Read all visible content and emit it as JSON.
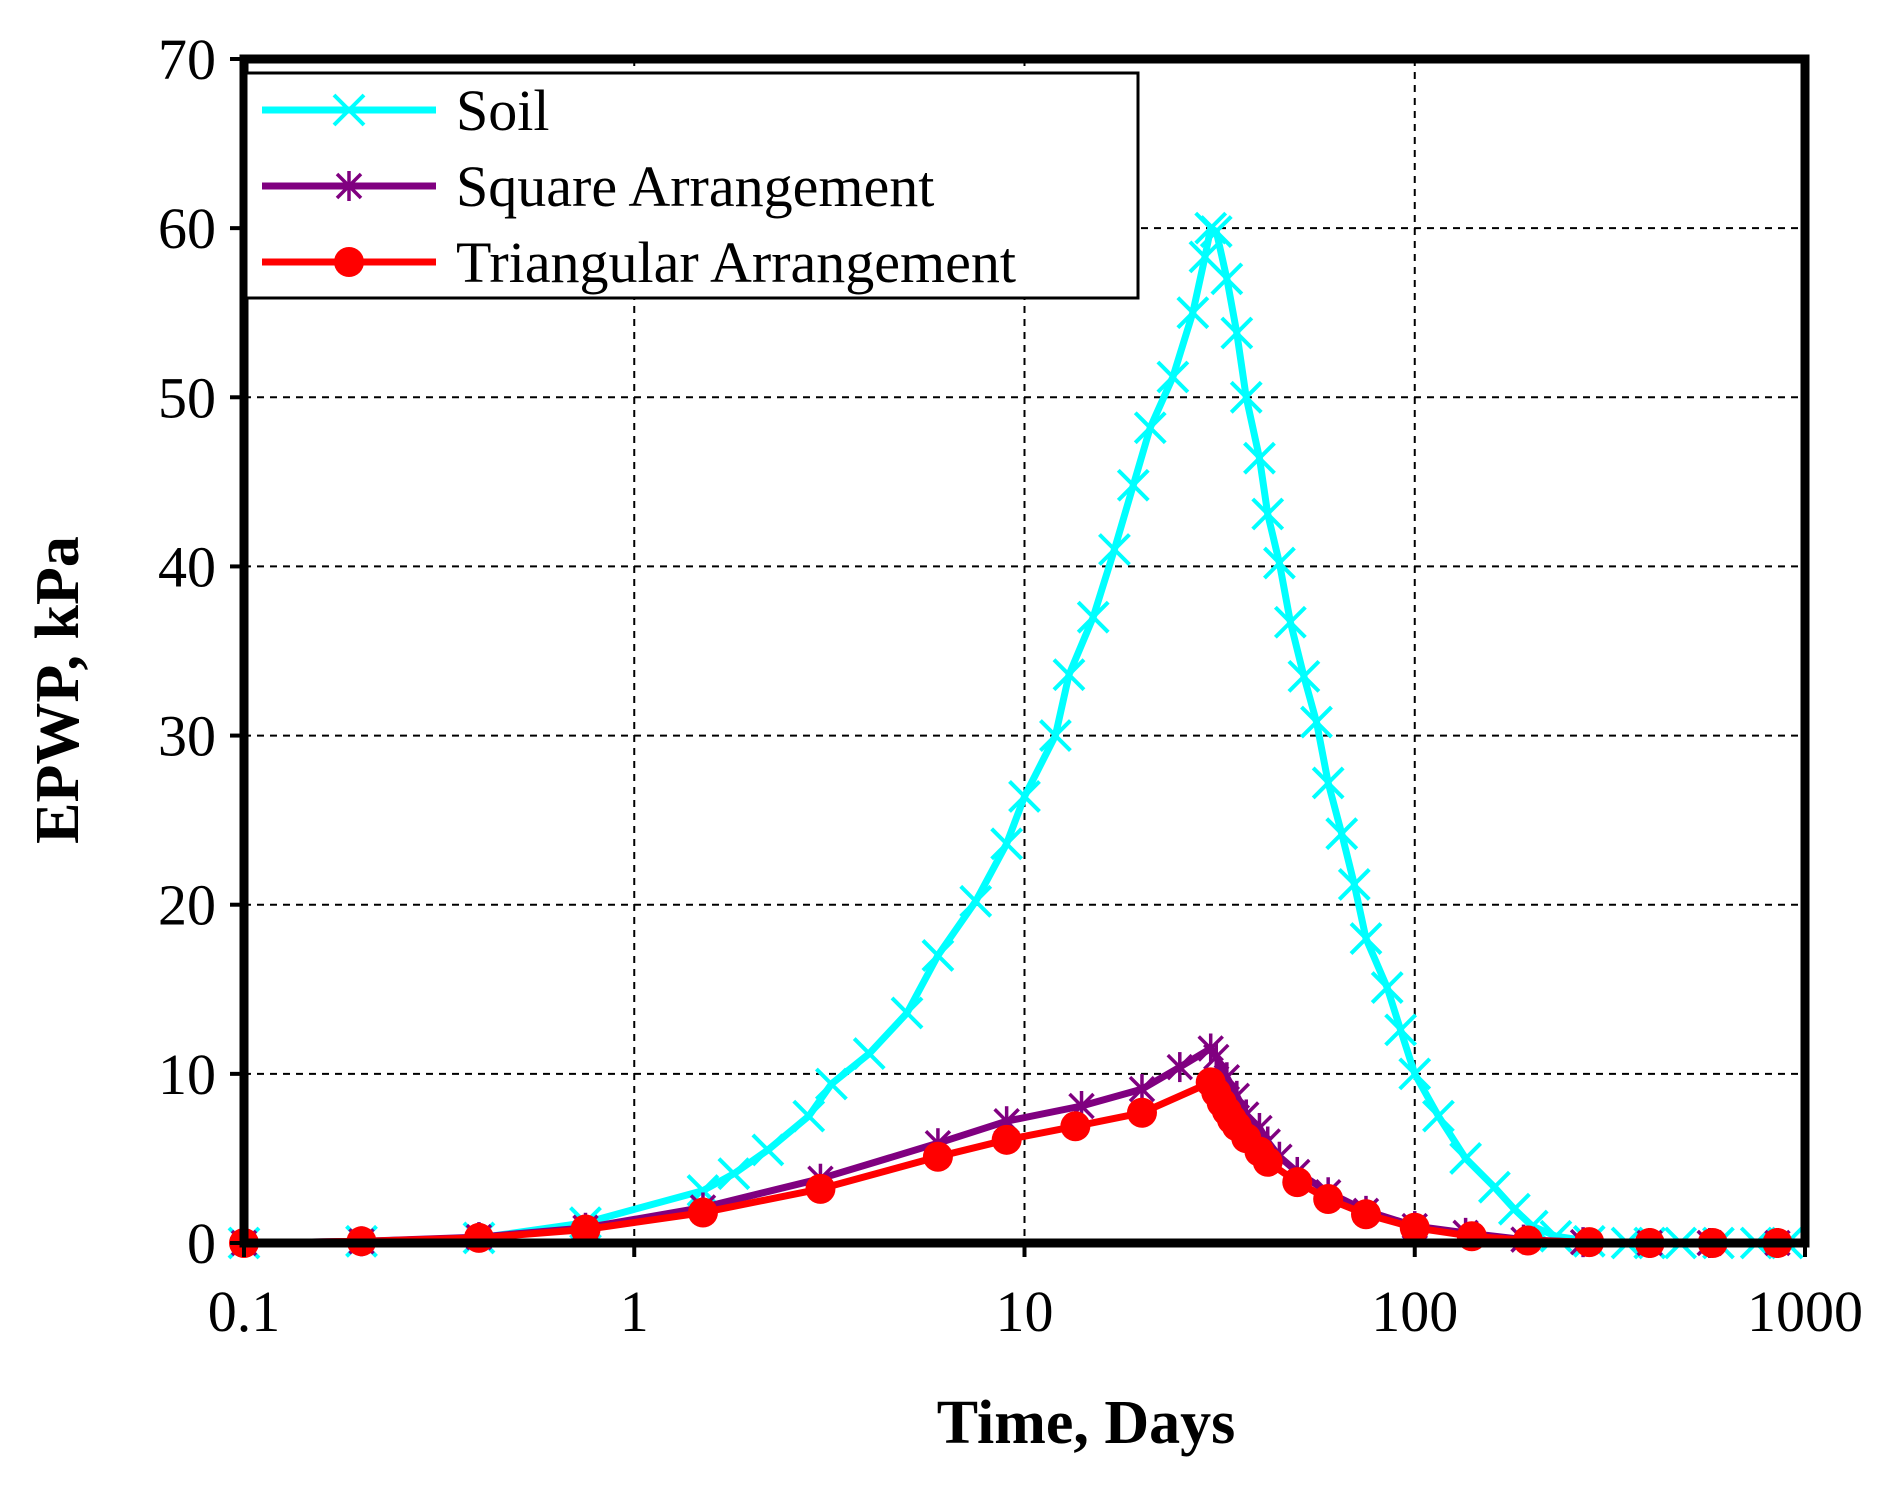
{
  "chart_data": {
    "type": "line",
    "xscale": "log",
    "xlabel": "Time, Days",
    "ylabel": "EPWP, kPa",
    "xlim": [
      0.1,
      1000
    ],
    "ylim": [
      0,
      70
    ],
    "grid": true,
    "legend_position": "top-left",
    "x_ticks": [
      0.1,
      1,
      10,
      100,
      1000
    ],
    "x_tick_labels": [
      "0.1",
      "1",
      "10",
      "100",
      "1000"
    ],
    "y_ticks": [
      0,
      10,
      20,
      30,
      40,
      50,
      60,
      70
    ],
    "y_tick_labels": [
      "0",
      "10",
      "20",
      "30",
      "40",
      "50",
      "60",
      "70"
    ],
    "series": [
      {
        "name": "Soil",
        "color": "#00ffff",
        "marker": "x",
        "points": [
          [
            0.1,
            0
          ],
          [
            0.2,
            0.1
          ],
          [
            0.4,
            0.3
          ],
          [
            0.75,
            1.2
          ],
          [
            1.5,
            3.1
          ],
          [
            1.8,
            4.1
          ],
          [
            2.2,
            5.5
          ],
          [
            2.8,
            7.5
          ],
          [
            3.2,
            9.4
          ],
          [
            4.0,
            11.2
          ],
          [
            5.0,
            13.6
          ],
          [
            6.0,
            17.0
          ],
          [
            7.5,
            20.2
          ],
          [
            9.0,
            23.6
          ],
          [
            10.0,
            26.4
          ],
          [
            12.0,
            30.0
          ],
          [
            13.0,
            33.6
          ],
          [
            15.0,
            37.0
          ],
          [
            17.0,
            41.0
          ],
          [
            19.0,
            44.8
          ],
          [
            21.0,
            48.2
          ],
          [
            24.0,
            51.2
          ],
          [
            27.0,
            55.0
          ],
          [
            29.0,
            58.3
          ],
          [
            30.0,
            60.0
          ],
          [
            31.0,
            59.8
          ],
          [
            33.0,
            57.0
          ],
          [
            35.0,
            53.8
          ],
          [
            37.0,
            50.0
          ],
          [
            40.0,
            46.4
          ],
          [
            42.0,
            43.1
          ],
          [
            45.0,
            40.2
          ],
          [
            48.0,
            36.7
          ],
          [
            52.0,
            33.5
          ],
          [
            56.0,
            30.8
          ],
          [
            60.0,
            27.2
          ],
          [
            65.0,
            24.2
          ],
          [
            70.0,
            21.2
          ],
          [
            75.0,
            18.0
          ],
          [
            85.0,
            15.1
          ],
          [
            92.0,
            12.6
          ],
          [
            100.0,
            10.0
          ],
          [
            115.0,
            7.5
          ],
          [
            135.0,
            5.0
          ],
          [
            160.0,
            3.3
          ],
          [
            180.0,
            2.0
          ],
          [
            200.0,
            1.0
          ],
          [
            230.0,
            0.4
          ],
          [
            280.0,
            0.1
          ],
          [
            350.0,
            0
          ],
          [
            400.0,
            0
          ],
          [
            480.0,
            0
          ],
          [
            600.0,
            0
          ],
          [
            750.0,
            0
          ],
          [
            900.0,
            0
          ]
        ]
      },
      {
        "name": "Square Arrangement",
        "color": "#800080",
        "marker": "asterisk",
        "points": [
          [
            0.1,
            0
          ],
          [
            0.2,
            0.1
          ],
          [
            0.4,
            0.35
          ],
          [
            0.75,
            0.9
          ],
          [
            1.5,
            2.1
          ],
          [
            3.0,
            3.8
          ],
          [
            6.0,
            5.9
          ],
          [
            9.0,
            7.2
          ],
          [
            14.0,
            8.1
          ],
          [
            20.0,
            9.1
          ],
          [
            25.0,
            10.4
          ],
          [
            30.0,
            11.5
          ],
          [
            31.0,
            11.0
          ],
          [
            33.0,
            9.8
          ],
          [
            35.0,
            8.7
          ],
          [
            37.0,
            7.6
          ],
          [
            40.0,
            6.8
          ],
          [
            42.0,
            6.0
          ],
          [
            45.0,
            5.1
          ],
          [
            50.0,
            4.2
          ],
          [
            60.0,
            3.0
          ],
          [
            75.0,
            1.9
          ],
          [
            100.0,
            1.0
          ],
          [
            135.0,
            0.6
          ],
          [
            190.0,
            0.2
          ],
          [
            270.0,
            0.05
          ],
          [
            400.0,
            0
          ],
          [
            570.0,
            0
          ],
          [
            850.0,
            0
          ]
        ]
      },
      {
        "name": "Triangular Arrangement",
        "color": "#ff0000",
        "marker": "circle",
        "points": [
          [
            0.1,
            0
          ],
          [
            0.2,
            0.1
          ],
          [
            0.4,
            0.3
          ],
          [
            0.75,
            0.8
          ],
          [
            1.5,
            1.8
          ],
          [
            3.0,
            3.2
          ],
          [
            6.0,
            5.1
          ],
          [
            9.0,
            6.1
          ],
          [
            13.5,
            6.9
          ],
          [
            20.0,
            7.7
          ],
          [
            30.0,
            9.5
          ],
          [
            31.0,
            8.9
          ],
          [
            32.0,
            8.3
          ],
          [
            33.0,
            7.8
          ],
          [
            34.0,
            7.3
          ],
          [
            35.0,
            6.9
          ],
          [
            37.0,
            6.2
          ],
          [
            40.0,
            5.4
          ],
          [
            42.0,
            4.8
          ],
          [
            50.0,
            3.6
          ],
          [
            60.0,
            2.6
          ],
          [
            75.0,
            1.7
          ],
          [
            100.0,
            0.9
          ],
          [
            140.0,
            0.4
          ],
          [
            195.0,
            0.15
          ],
          [
            280.0,
            0.05
          ],
          [
            400.0,
            0
          ],
          [
            580.0,
            0
          ],
          [
            850.0,
            0
          ]
        ]
      }
    ]
  }
}
